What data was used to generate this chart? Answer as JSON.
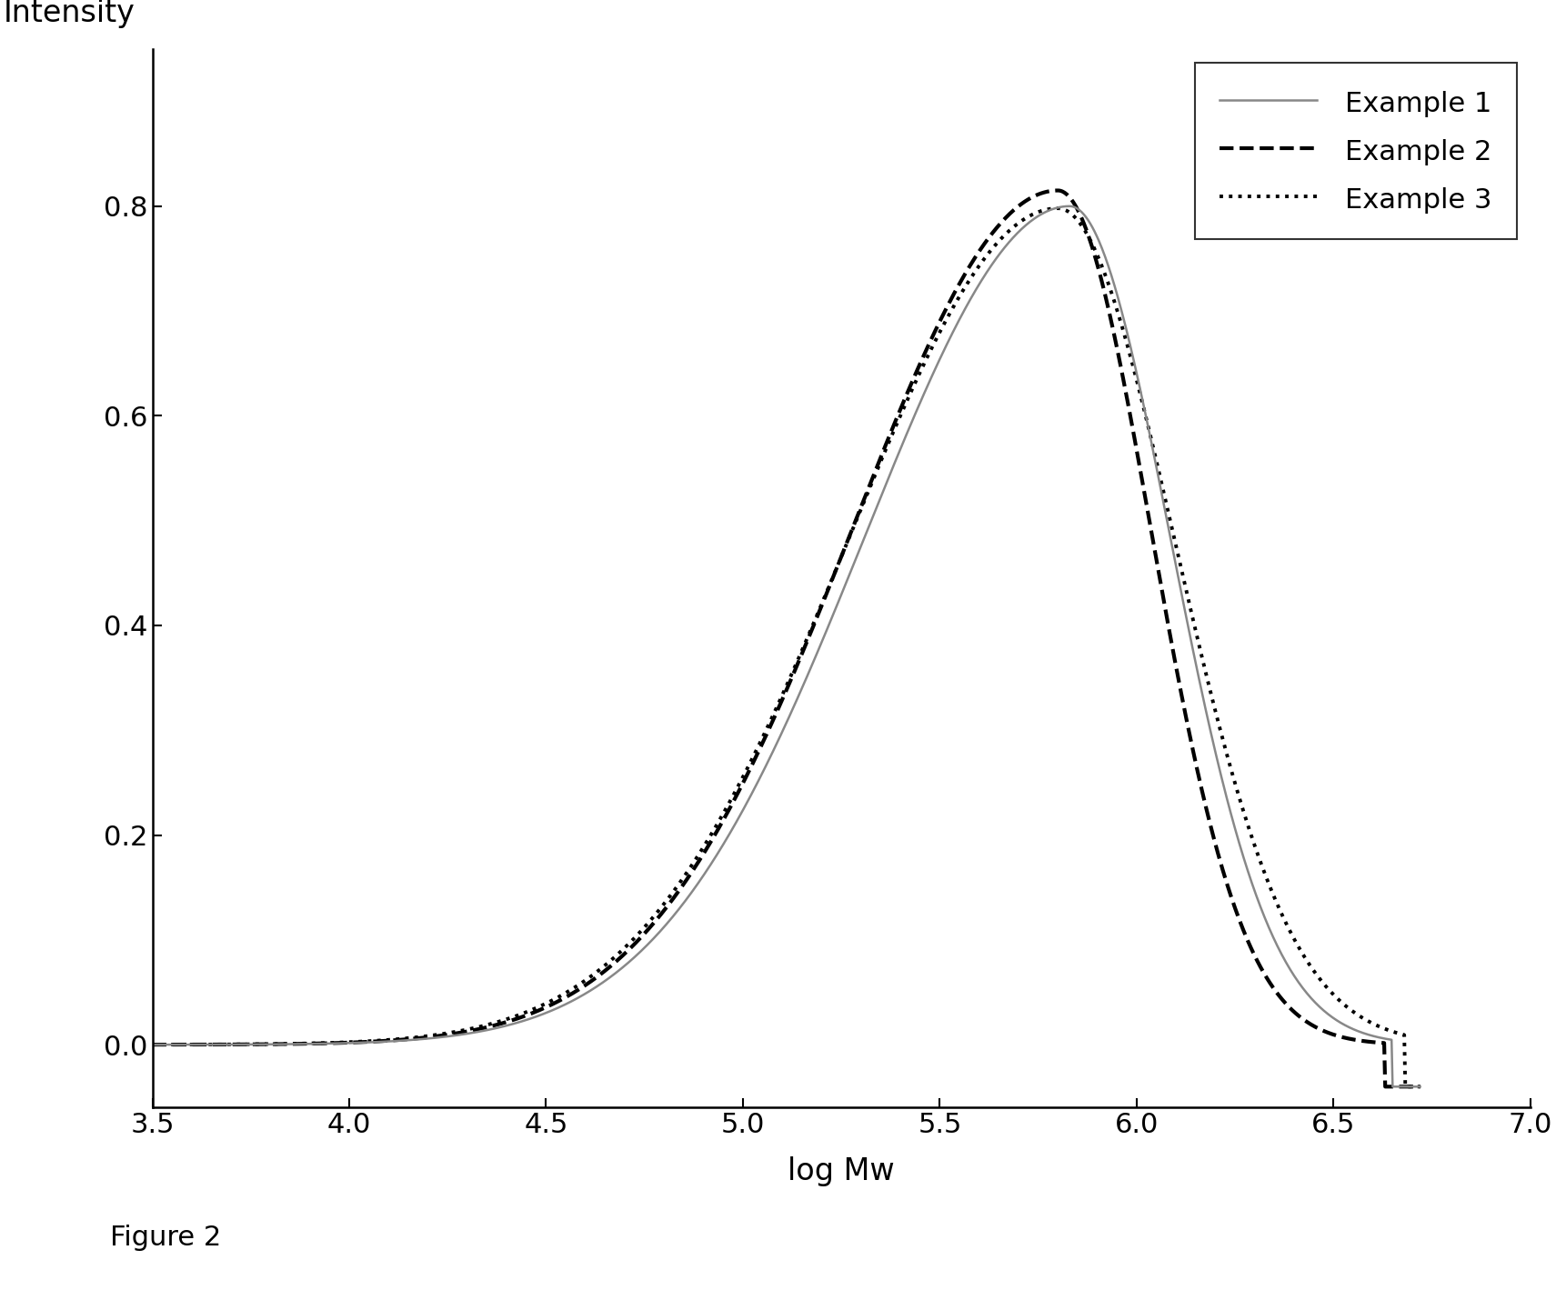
{
  "title": "",
  "xlabel": "log Mw",
  "ylabel": "Intensity",
  "xlim": [
    3.5,
    7.0
  ],
  "ylim": [
    -0.06,
    0.95
  ],
  "xticks": [
    3.5,
    4.0,
    4.5,
    5.0,
    5.5,
    6.0,
    6.5,
    7.0
  ],
  "yticks": [
    0.0,
    0.2,
    0.4,
    0.6,
    0.8
  ],
  "figure_caption": "Figure 2",
  "legend_entries": [
    "Example 1",
    "Example 2",
    "Example 3"
  ],
  "line_styles": [
    {
      "color": "#888888",
      "linestyle": "-",
      "linewidth": 1.8
    },
    {
      "color": "#000000",
      "linestyle": "--",
      "linewidth": 3.0
    },
    {
      "color": "#000000",
      "linestyle": ":",
      "linewidth": 2.8
    }
  ],
  "background_color": "#ffffff",
  "curve1": {
    "mu": 5.83,
    "amp": 0.8,
    "sig_l": 0.52,
    "sig_r": 0.255
  },
  "curve2": {
    "mu": 5.8,
    "amp": 0.815,
    "sig_l": 0.52,
    "sig_r": 0.235
  },
  "curve3": {
    "mu": 5.8,
    "amp": 0.798,
    "sig_l": 0.53,
    "sig_r": 0.295
  }
}
